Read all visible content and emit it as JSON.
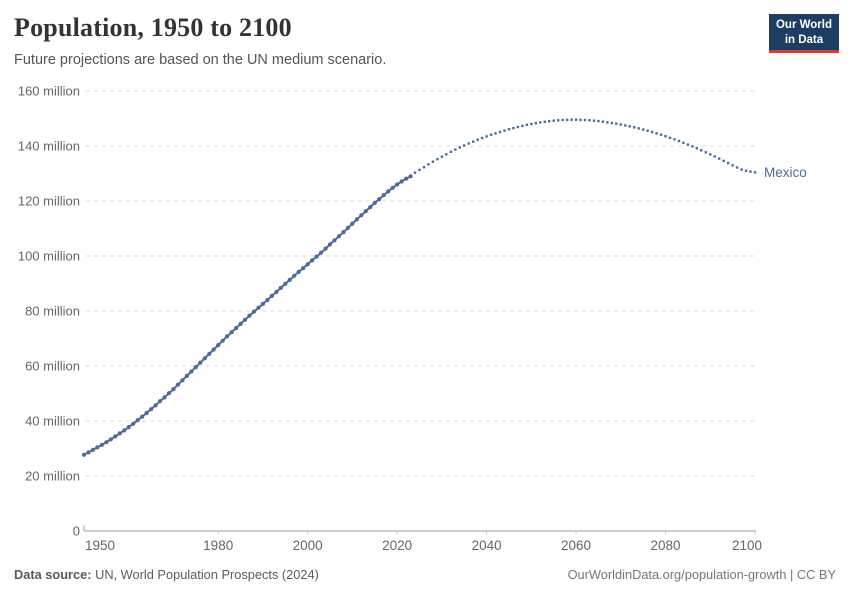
{
  "header": {
    "title": "Population, 1950 to 2100",
    "subtitle": "Future projections are based on the UN medium scenario.",
    "logo": {
      "line1": "Our World",
      "line2": "in Data"
    }
  },
  "footer": {
    "data_source_label": "Data source:",
    "data_source_value": " UN, World Population Prospects (2024)",
    "credit": "OurWorldinData.org/population-growth | CC BY"
  },
  "colors": {
    "series": "#4C6A9C",
    "entity_label": "#4C6A9C",
    "grid": "#dcdcdc",
    "axis": "#9e9e9e",
    "minor_tick": "#c9c9c9",
    "tick_text": "#666666",
    "logo_bg": "#1d3d63",
    "logo_bar": "#d93a2d"
  },
  "chart_data": {
    "type": "line",
    "title": "Population, 1950 to 2100",
    "subtitle": "Future projections are based on the UN medium scenario.",
    "entity_label": "Mexico",
    "unit": "million people",
    "x_range": [
      1950,
      2100
    ],
    "y_range": [
      0,
      160
    ],
    "grid": true,
    "legend_position": "end-of-line",
    "xticks": [
      1950,
      1980,
      2000,
      2020,
      2040,
      2060,
      2080,
      2100
    ],
    "yticks": [
      {
        "value": 0,
        "label": "0"
      },
      {
        "value": 20,
        "label": "20 million"
      },
      {
        "value": 40,
        "label": "40 million"
      },
      {
        "value": 60,
        "label": "60 million"
      },
      {
        "value": 80,
        "label": "80 million"
      },
      {
        "value": 100,
        "label": "100 million"
      },
      {
        "value": 120,
        "label": "120 million"
      },
      {
        "value": 140,
        "label": "140 million"
      },
      {
        "value": 160,
        "label": "160 million"
      }
    ],
    "series": [
      {
        "name": "Mexico",
        "segment": "estimates",
        "style": "solid",
        "start_year": 1950,
        "end_year": 2023,
        "values": [
          27.7,
          28.6,
          29.5,
          30.4,
          31.3,
          32.3,
          33.3,
          34.4,
          35.5,
          36.6,
          37.8,
          39.0,
          40.3,
          41.6,
          42.9,
          44.3,
          45.7,
          47.2,
          48.6,
          50.1,
          51.6,
          53.2,
          54.8,
          56.4,
          58.0,
          59.6,
          61.2,
          62.8,
          64.4,
          66.0,
          67.6,
          69.2,
          70.8,
          72.3,
          73.8,
          75.3,
          76.8,
          78.3,
          79.8,
          81.2,
          82.6,
          84.0,
          85.5,
          86.9,
          88.4,
          89.9,
          91.3,
          92.8,
          94.2,
          95.6,
          97.0,
          98.4,
          99.8,
          101.2,
          102.7,
          104.2,
          105.7,
          107.2,
          108.7,
          110.2,
          111.8,
          113.3,
          114.8,
          116.3,
          117.8,
          119.3,
          120.7,
          122.1,
          123.5,
          124.8,
          126.0,
          127.1,
          128.1,
          129.0
        ]
      },
      {
        "name": "Mexico",
        "segment": "projection (UN medium scenario)",
        "style": "dotted",
        "start_year": 2024,
        "end_year": 2100,
        "values": [
          130.3,
          131.3,
          132.3,
          133.3,
          134.3,
          135.2,
          136.1,
          137.0,
          137.9,
          138.7,
          139.5,
          140.2,
          140.9,
          141.6,
          142.3,
          142.9,
          143.5,
          144.1,
          144.6,
          145.1,
          145.6,
          146.1,
          146.5,
          146.9,
          147.3,
          147.7,
          148.0,
          148.3,
          148.6,
          148.8,
          149.0,
          149.2,
          149.35,
          149.45,
          149.5,
          149.55,
          149.55,
          149.5,
          149.45,
          149.35,
          149.2,
          149.05,
          148.85,
          148.6,
          148.35,
          148.1,
          147.8,
          147.5,
          147.15,
          146.8,
          146.4,
          146.0,
          145.55,
          145.1,
          144.6,
          144.1,
          143.55,
          143.0,
          142.4,
          141.8,
          141.15,
          140.5,
          139.85,
          139.15,
          138.45,
          137.7,
          136.95,
          136.2,
          135.4,
          134.6,
          133.8,
          133.0,
          132.2,
          131.4,
          131.0,
          130.7,
          130.4
        ]
      }
    ]
  }
}
